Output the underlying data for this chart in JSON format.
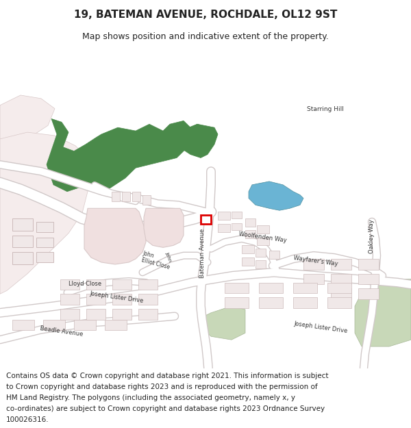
{
  "title": "19, BATEMAN AVENUE, ROCHDALE, OL12 9ST",
  "subtitle": "Map shows position and indicative extent of the property.",
  "footer_lines": [
    "Contains OS data © Crown copyright and database right 2021. This information is subject",
    "to Crown copyright and database rights 2023 and is reproduced with the permission of",
    "HM Land Registry. The polygons (including the associated geometry, namely x, y",
    "co-ordinates) are subject to Crown copyright and database rights 2023 Ordnance Survey",
    "100026316."
  ],
  "background_color": "#ffffff",
  "title_fontsize": 11,
  "subtitle_fontsize": 9,
  "footer_fontsize": 7.5,
  "c_building": "#f0e8e8",
  "c_building_outline": "#ccbbbb",
  "c_green": "#4a8a4a",
  "c_blue": "#6ab4d4",
  "c_road_fill": "#ffffff",
  "c_road_edge": "#d0c8c8",
  "c_pink_area": "#f0e0e0",
  "c_pink_outline": "#d8c8c8"
}
